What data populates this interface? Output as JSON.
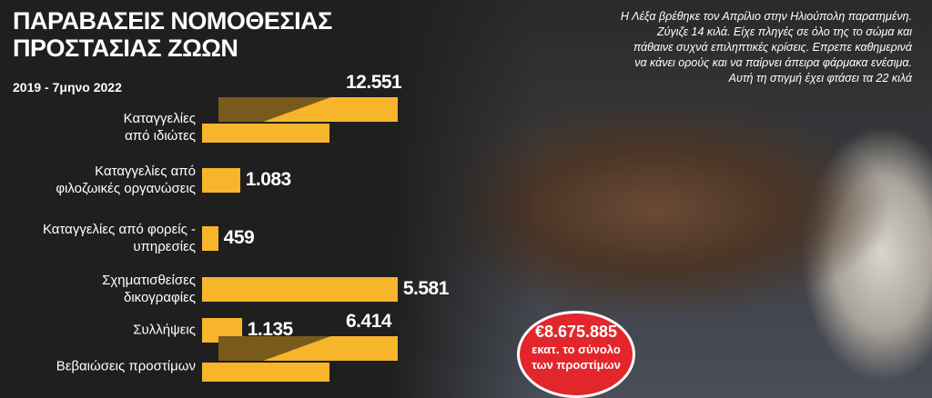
{
  "chart_data": {
    "type": "bar",
    "orientation": "horizontal",
    "title": "ΠΑΡΑΒΑΣΕΙΣ ΝΟΜΟΘΕΣΙΑΣ\nΠΡΟΣΤΑΣΙΑΣ ΖΩΩΝ",
    "subtitle": "2019 - 7μηνο 2022",
    "categories": [
      "Καταγγελίες\nαπό ιδιώτες",
      "Καταγγελίες από\nφιλοζωικές οργανώσεις",
      "Καταγγελίες από φορείς -\nυπηρεσίες",
      "Σχηματισθείσες\nδικογραφίες",
      "Συλλήψεις",
      "Βεβαιώσεις προστίμων"
    ],
    "values": [
      12551,
      1083,
      459,
      5581,
      1135,
      6414
    ],
    "value_labels": [
      "12.551",
      "1.083",
      "459",
      "5.581",
      "1.135",
      "6.414"
    ],
    "color": "#f7b52c"
  },
  "caption": "Η Λέξα βρέθηκε τον Απρίλιο στην Ηλιούπολη παρατημένη.\nΖύγιζε 14 κιλά. Είχε πληγές σε όλο της το σώμα και\nπάθαινε συχνά επιληπτικές κρίσεις. Επρεπε καθημερινά\nνα κάνει ορούς και να παίρνει άπειρα φάρμακα ενέσιμα.\nΑυτή τη στιγμή έχει φτάσει τα 22 κιλά",
  "badge": {
    "amount": "€8.675.885",
    "text": "εκατ. το σύνολο\nτων προστίμων"
  }
}
